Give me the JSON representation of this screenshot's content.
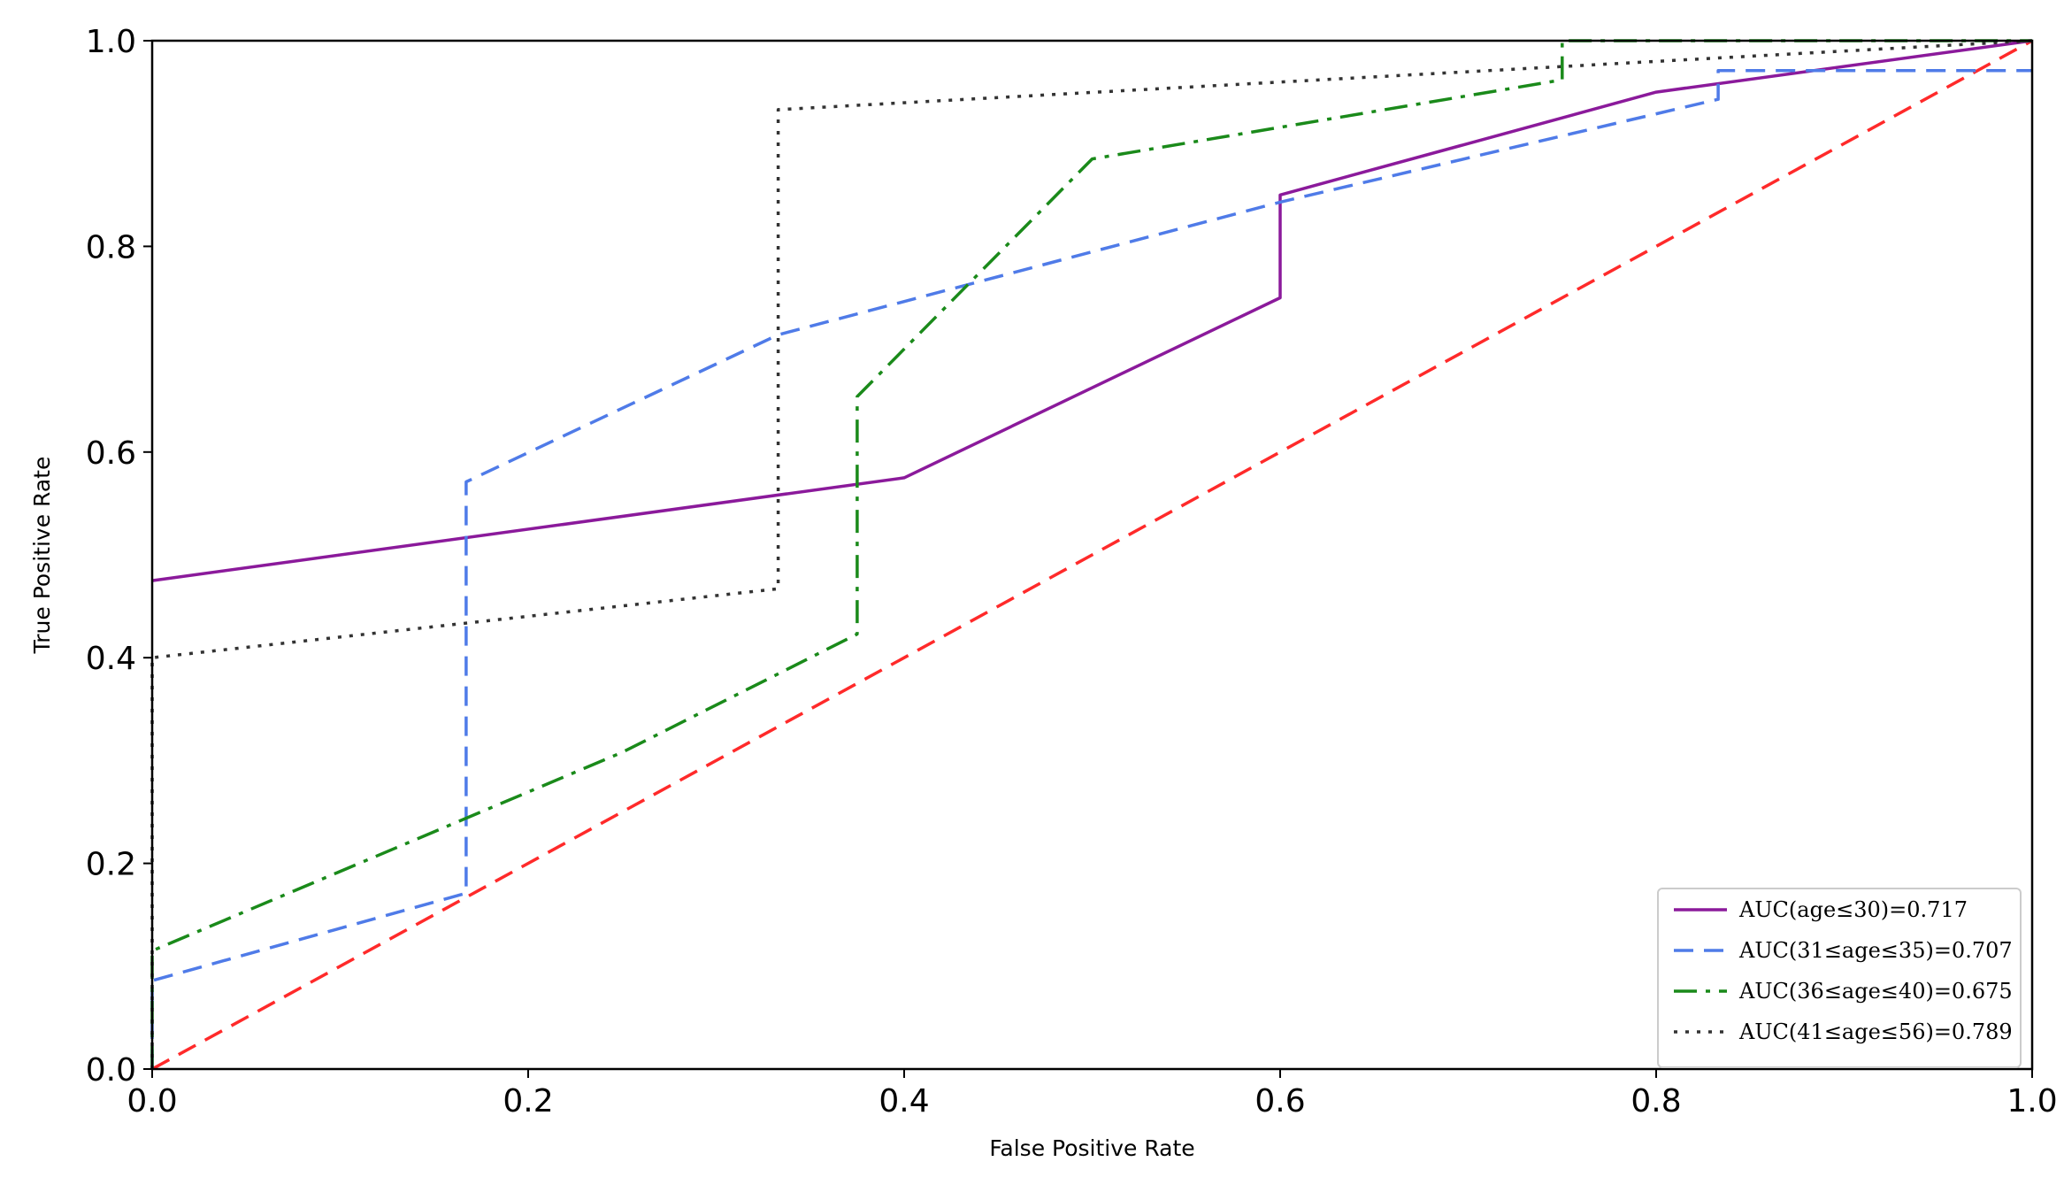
{
  "chart_data": {
    "type": "line",
    "title": "",
    "xlabel": "False Positive Rate",
    "ylabel": "True Positive Rate",
    "xlim": [
      0.0,
      1.0
    ],
    "ylim": [
      0.0,
      1.0
    ],
    "xticks": [
      "0.0",
      "0.2",
      "0.4",
      "0.6",
      "0.8",
      "1.0"
    ],
    "yticks": [
      "0.0",
      "0.2",
      "0.4",
      "0.6",
      "0.8",
      "1.0"
    ],
    "grid": false,
    "legend_position": "lower-right",
    "series": [
      {
        "name": "AUC(age≤30)=0.717",
        "color": "#8b1a9b",
        "style": "solid",
        "points": [
          [
            0.0,
            0.475
          ],
          [
            0.4,
            0.575
          ],
          [
            0.6,
            0.75
          ],
          [
            0.6,
            0.85
          ],
          [
            0.8,
            0.95
          ],
          [
            1.0,
            1.0
          ]
        ]
      },
      {
        "name": "AUC(31≤age≤35)=0.707",
        "color": "#4f7be8",
        "style": "dashed",
        "points": [
          [
            0.0,
            0.0
          ],
          [
            0.0,
            0.086
          ],
          [
            0.167,
            0.171
          ],
          [
            0.167,
            0.571
          ],
          [
            0.333,
            0.714
          ],
          [
            0.6,
            0.843
          ],
          [
            0.833,
            0.943
          ],
          [
            0.833,
            0.971
          ],
          [
            1.0,
            0.971
          ]
        ]
      },
      {
        "name": "AUC(36≤age≤40)=0.675",
        "color": "#1a8a1a",
        "style": "dashdot",
        "points": [
          [
            0.0,
            0.0
          ],
          [
            0.0,
            0.115
          ],
          [
            0.25,
            0.308
          ],
          [
            0.375,
            0.423
          ],
          [
            0.375,
            0.654
          ],
          [
            0.5,
            0.885
          ],
          [
            0.75,
            0.962
          ],
          [
            0.75,
            1.0
          ],
          [
            1.0,
            1.0
          ]
        ]
      },
      {
        "name": "AUC(41≤age≤56)=0.789",
        "color": "#333333",
        "style": "dotted",
        "points": [
          [
            0.0,
            0.0
          ],
          [
            0.0,
            0.4
          ],
          [
            0.333,
            0.467
          ],
          [
            0.333,
            0.933
          ],
          [
            1.0,
            1.0
          ]
        ]
      }
    ],
    "reference_line": {
      "color": "#ff2a2a",
      "style": "dashed",
      "points": [
        [
          0.0,
          0.0
        ],
        [
          1.0,
          1.0
        ]
      ]
    }
  }
}
